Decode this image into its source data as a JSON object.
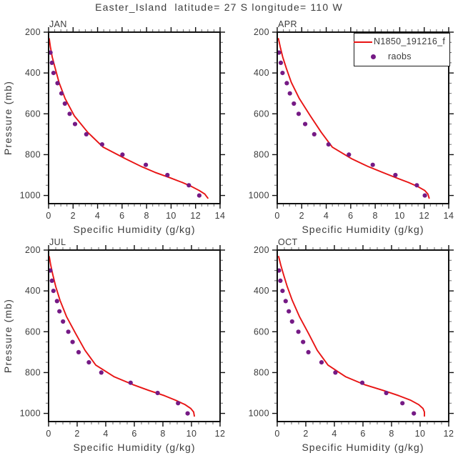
{
  "title": "Easter_Island  latitude= 27 S longitude= 110 W",
  "legend": {
    "items": [
      {
        "label": "N1850_191216_f",
        "type": "line",
        "color": "#e81414"
      },
      {
        "label": "raobs",
        "type": "marker",
        "color": "#751a85"
      }
    ]
  },
  "colors": {
    "model_line": "#e81414",
    "raobs_marker": "#751a85",
    "axis": "#111111",
    "minor_tick": "#666666",
    "text": "#3c3c3c"
  },
  "chart_data": {
    "type": "line",
    "title": "Easter_Island  latitude= 27 S longitude= 110 W",
    "xlabel": "Specific Humidity (g/kg)",
    "ylabel": "Pressure (mb)",
    "ylim": [
      200,
      1040
    ],
    "yticks": [
      200,
      400,
      600,
      800,
      1000
    ],
    "y_minor_step": 50,
    "y_axis_inverted_note": "pressure increases downward",
    "legend_position": "top-right of APR panel",
    "grid": false,
    "series_names": [
      "N1850_191216_f",
      "raobs"
    ],
    "panels": [
      {
        "label": "JAN",
        "xlim": [
          0,
          14
        ],
        "xticks": [
          0,
          2,
          4,
          6,
          8,
          10,
          12,
          14
        ],
        "x_minor_step": 0.5,
        "model": {
          "pressure": [
            232,
            274,
            322,
            379,
            446,
            525,
            610,
            691,
            763,
            821,
            859,
            887,
            913,
            936,
            957,
            976,
            993,
            1013
          ],
          "q": [
            0.05,
            0.15,
            0.3,
            0.55,
            0.85,
            1.35,
            2.1,
            3.2,
            4.45,
            6.3,
            7.6,
            8.7,
            9.9,
            10.9,
            11.7,
            12.3,
            12.75,
            13.0
          ]
        },
        "raobs": {
          "pressure": [
            300,
            350,
            400,
            450,
            500,
            550,
            600,
            650,
            700,
            750,
            800,
            850,
            900,
            950,
            1000
          ],
          "q": [
            0.15,
            0.27,
            0.4,
            0.73,
            1.05,
            1.33,
            1.72,
            2.16,
            3.08,
            4.37,
            6.03,
            7.94,
            9.7,
            11.45,
            12.3
          ]
        }
      },
      {
        "label": "APR",
        "xlim": [
          0,
          14
        ],
        "xticks": [
          0,
          2,
          4,
          6,
          8,
          10,
          12,
          14
        ],
        "x_minor_step": 0.5,
        "model": {
          "pressure": [
            232,
            274,
            322,
            379,
            446,
            525,
            610,
            691,
            763,
            821,
            859,
            887,
            913,
            936,
            957,
            976,
            993,
            1013
          ],
          "q": [
            0.1,
            0.25,
            0.45,
            0.75,
            1.15,
            1.8,
            2.7,
            3.6,
            4.5,
            6.1,
            7.45,
            8.6,
            9.7,
            10.7,
            11.5,
            12.05,
            12.3,
            12.4
          ]
        },
        "raobs": {
          "pressure": [
            300,
            350,
            400,
            450,
            500,
            550,
            600,
            650,
            700,
            750,
            800,
            850,
            900,
            950,
            1000
          ],
          "q": [
            0.14,
            0.29,
            0.43,
            0.78,
            1.03,
            1.36,
            1.75,
            2.28,
            3.02,
            4.19,
            5.85,
            7.8,
            9.65,
            11.4,
            12.05
          ]
        }
      },
      {
        "label": "JUL",
        "xlim": [
          0,
          12
        ],
        "xticks": [
          0,
          2,
          4,
          6,
          8,
          10,
          12
        ],
        "x_minor_step": 0.5,
        "model": {
          "pressure": [
            232,
            274,
            322,
            379,
            446,
            525,
            610,
            691,
            763,
            821,
            859,
            887,
            913,
            936,
            957,
            976,
            993,
            1013
          ],
          "q": [
            0.05,
            0.15,
            0.3,
            0.5,
            0.8,
            1.25,
            1.9,
            2.55,
            3.3,
            4.6,
            5.9,
            7.0,
            8.1,
            8.9,
            9.55,
            9.95,
            10.15,
            10.2
          ]
        },
        "raobs": {
          "pressure": [
            300,
            350,
            400,
            450,
            500,
            550,
            600,
            650,
            700,
            750,
            800,
            850,
            900,
            950,
            1000
          ],
          "q": [
            0.12,
            0.23,
            0.34,
            0.59,
            0.76,
            1.01,
            1.38,
            1.68,
            2.1,
            2.82,
            3.69,
            5.74,
            7.63,
            9.06,
            9.73
          ]
        }
      },
      {
        "label": "OCT",
        "xlim": [
          0,
          12
        ],
        "xticks": [
          0,
          2,
          4,
          6,
          8,
          10,
          12
        ],
        "x_minor_step": 0.5,
        "model": {
          "pressure": [
            232,
            274,
            322,
            379,
            446,
            525,
            610,
            691,
            763,
            821,
            859,
            887,
            913,
            936,
            957,
            976,
            993,
            1013
          ],
          "q": [
            0.1,
            0.25,
            0.45,
            0.7,
            1.05,
            1.55,
            2.2,
            2.8,
            3.55,
            4.8,
            6.1,
            7.4,
            8.5,
            9.35,
            9.9,
            10.2,
            10.3,
            10.3
          ]
        },
        "raobs": {
          "pressure": [
            300,
            350,
            400,
            450,
            500,
            550,
            600,
            650,
            700,
            750,
            800,
            850,
            900,
            950,
            1000
          ],
          "q": [
            0.12,
            0.22,
            0.37,
            0.59,
            0.81,
            1.04,
            1.48,
            1.81,
            2.18,
            3.1,
            4.07,
            5.95,
            7.63,
            8.76,
            9.56
          ]
        }
      }
    ]
  }
}
